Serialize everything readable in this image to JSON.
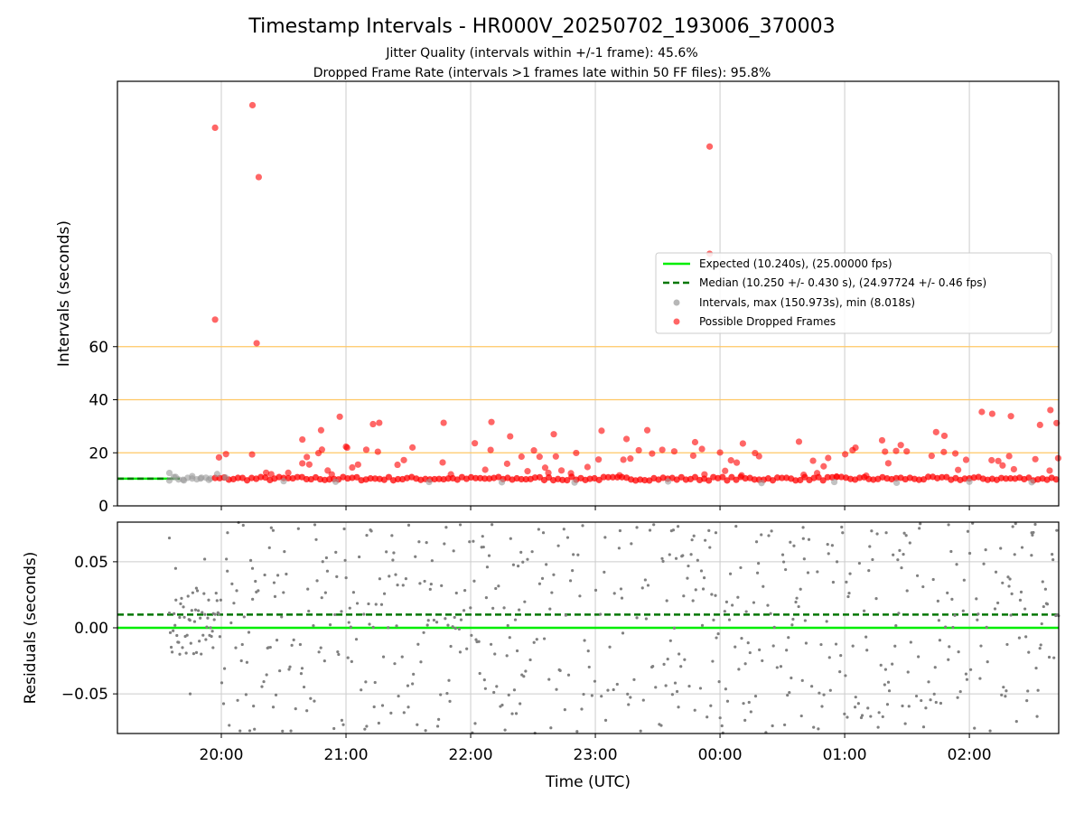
{
  "chart_data": [
    {
      "type": "scatter",
      "title": "Timestamp Intervals - HR000V_20250702_193006_370003",
      "subtitle_lines": [
        "Jitter Quality (intervals within +/-1 frame): 45.6%",
        "Dropped Frame Rate (intervals >1 frames late within 50 FF files): 95.8%"
      ],
      "xlabel": "",
      "ylabel": "Intervals (seconds)",
      "xlim": [
        "19:10",
        "02:43"
      ],
      "ylim": [
        0,
        160
      ],
      "yticks": [
        0,
        20,
        40,
        60
      ],
      "reference_lines_y": [
        20,
        40,
        60
      ],
      "grid": "vertical",
      "legend": {
        "placement": "center-right",
        "entries": [
          "Expected (10.240s), (25.00000 fps)",
          "Median (10.250 +/- 0.430 s), (24.97724 +/- 0.46 fps)",
          "Intervals, max (150.973s), min (8.018s)",
          "Possible Dropped Frames"
        ]
      },
      "expected_interval": 10.24,
      "median_interval": 10.25,
      "colors": {
        "expected": "#00ee00",
        "median": "#007700",
        "intervals": "#999999",
        "dropped": "#ff0000",
        "reference": "#ffc864"
      },
      "series": [
        {
          "name": "Possible Dropped Frames",
          "points": [
            [
              "19:57",
              142.5
            ],
            [
              "19:57",
              70.2
            ],
            [
              "20:15",
              151.0
            ],
            [
              "20:17",
              61.3
            ],
            [
              "20:18",
              123.9
            ],
            [
              "23:55",
              135.4
            ],
            [
              "23:55",
              95.0
            ],
            [
              "20:39",
              25.0
            ],
            [
              "20:48",
              28.5
            ],
            [
              "20:57",
              33.6
            ],
            [
              "21:00",
              22.3
            ],
            [
              "21:13",
              30.8
            ],
            [
              "21:16",
              31.3
            ],
            [
              "21:32",
              22.0
            ],
            [
              "21:47",
              31.3
            ],
            [
              "22:02",
              23.6
            ],
            [
              "22:10",
              31.6
            ],
            [
              "22:19",
              26.2
            ],
            [
              "22:40",
              27.0
            ],
            [
              "23:03",
              28.3
            ],
            [
              "23:15",
              25.2
            ],
            [
              "23:25",
              28.5
            ],
            [
              "23:48",
              24.0
            ],
            [
              "00:00",
              20.1
            ],
            [
              "00:11",
              23.5
            ],
            [
              "00:38",
              24.2
            ],
            [
              "01:18",
              24.7
            ],
            [
              "01:27",
              22.9
            ],
            [
              "01:44",
              27.8
            ],
            [
              "01:48",
              26.4
            ],
            [
              "02:06",
              35.4
            ],
            [
              "02:11",
              34.7
            ],
            [
              "02:20",
              33.8
            ],
            [
              "02:34",
              30.5
            ],
            [
              "02:39",
              36.1
            ],
            [
              "02:42",
              31.2
            ]
          ]
        },
        {
          "name": "Intervals, max (150.973s), min (8.018s)",
          "points": [
            [
              "19:35",
              12.4
            ],
            [
              "19:38",
              10.9
            ],
            [
              "19:42",
              9.6
            ],
            [
              "19:46",
              11.2
            ],
            [
              "19:50",
              10.3
            ],
            [
              "19:54",
              9.8
            ],
            [
              "19:58",
              12.0
            ],
            [
              "20:02",
              10.7
            ],
            [
              "20:30",
              9.3
            ],
            [
              "20:55",
              9.1
            ],
            [
              "21:40",
              9.0
            ],
            [
              "22:15",
              8.9
            ],
            [
              "22:50",
              8.8
            ],
            [
              "23:35",
              9.2
            ],
            [
              "00:20",
              8.6
            ],
            [
              "00:55",
              9.0
            ],
            [
              "01:25",
              8.7
            ],
            [
              "02:00",
              9.1
            ],
            [
              "02:30",
              8.9
            ]
          ]
        }
      ]
    },
    {
      "type": "scatter",
      "xlabel": "Time (UTC)",
      "ylabel": "Residuals (seconds)",
      "xlim": [
        "19:10",
        "02:43"
      ],
      "ylim": [
        -0.08,
        0.08
      ],
      "yticks": [
        -0.05,
        0.0,
        0.05
      ],
      "ytick_labels": [
        "−0.05",
        "0.00",
        "0.05"
      ],
      "xticks": [
        "20:00",
        "21:00",
        "22:00",
        "23:00",
        "00:00",
        "01:00",
        "02:00"
      ],
      "grid": "both",
      "expected_residual": 0.0,
      "median_residual": 0.01,
      "colors": {
        "points": "#808080",
        "expected": "#00ee00",
        "median": "#007700"
      },
      "series": [
        {
          "name": "Residuals",
          "points": [
            [
              "19:35",
              0.068
            ],
            [
              "19:38",
              0.045
            ],
            [
              "19:40",
              -0.02
            ],
            [
              "19:45",
              -0.05
            ],
            [
              "19:48",
              0.03
            ],
            [
              "19:52",
              0.052
            ],
            [
              "19:56",
              -0.015
            ],
            [
              "20:03",
              0.072
            ],
            [
              "20:09",
              -0.078
            ],
            [
              "20:15",
              0.045
            ],
            [
              "20:25",
              -0.06
            ],
            [
              "20:45",
              0.078
            ],
            [
              "20:58",
              -0.07
            ],
            [
              "21:10",
              0.07
            ],
            [
              "21:30",
              -0.06
            ],
            [
              "21:55",
              0.078
            ],
            [
              "22:20",
              -0.065
            ],
            [
              "22:35",
              0.072
            ],
            [
              "23:05",
              -0.07
            ],
            [
              "23:20",
              0.076
            ],
            [
              "23:40",
              -0.06
            ],
            [
              "23:58",
              0.072
            ],
            [
              "00:12",
              -0.07
            ],
            [
              "00:40",
              0.076
            ],
            [
              "01:05",
              -0.06
            ],
            [
              "01:20",
              0.072
            ],
            [
              "01:38",
              -0.075
            ],
            [
              "01:50",
              0.078
            ],
            [
              "02:10",
              -0.078
            ],
            [
              "02:30",
              0.072
            ]
          ]
        }
      ]
    }
  ]
}
